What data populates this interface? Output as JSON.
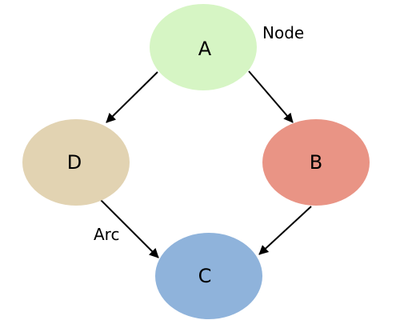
{
  "nodes": [
    {
      "id": "A",
      "label": "A",
      "color": "#d6f5c4"
    },
    {
      "id": "B",
      "label": "B",
      "color": "#e99485"
    },
    {
      "id": "C",
      "label": "C",
      "color": "#8fb3db"
    },
    {
      "id": "D",
      "label": "D",
      "color": "#e2d3b2"
    }
  ],
  "edges": [
    {
      "from": "A",
      "to": "D"
    },
    {
      "from": "A",
      "to": "B"
    },
    {
      "from": "D",
      "to": "C"
    },
    {
      "from": "B",
      "to": "C"
    }
  ],
  "annotations": {
    "node_label": "Node",
    "arc_label": "Arc"
  },
  "colors": {
    "stroke": "#000000",
    "background": "#ffffff"
  }
}
